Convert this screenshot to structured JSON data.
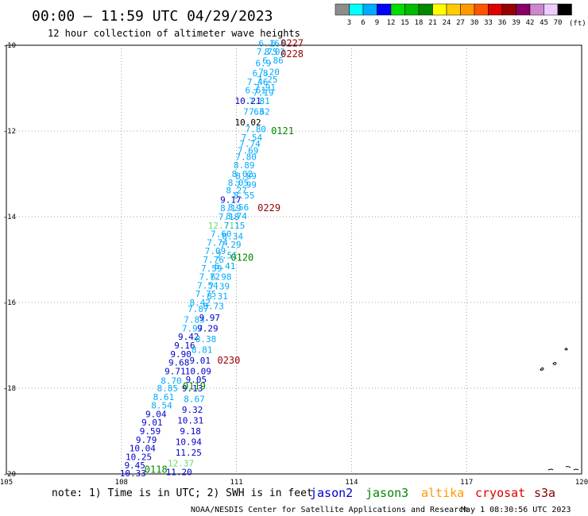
{
  "header": {
    "title": "00:00 – 11:59 UTC 04/29/2023",
    "subtitle": "12 hour collection of altimeter wave heights"
  },
  "legend": {
    "labels": [
      "3",
      "6",
      "9",
      "12",
      "15",
      "18",
      "21",
      "24",
      "27",
      "30",
      "33",
      "36",
      "39",
      "42",
      "45",
      "70"
    ],
    "unit": "(ft)",
    "colors": [
      "#8c8c8c",
      "#00ffff",
      "#00aaff",
      "#0000ff",
      "#00dd00",
      "#00bb00",
      "#008800",
      "#ffff00",
      "#ffcc00",
      "#ff9900",
      "#ff5500",
      "#dd0000",
      "#990000",
      "#880066",
      "#cc88cc",
      "#eeccff",
      "#000000"
    ]
  },
  "axes": {
    "lat_labels": [
      "-10",
      "-12",
      "-14",
      "-16",
      "-18",
      "-20"
    ],
    "lon_labels": [
      "105",
      "108",
      "111",
      "114",
      "117",
      "120"
    ],
    "lat_range": [
      -20,
      -10
    ],
    "lon_range": [
      105,
      120
    ]
  },
  "note": "note: 1) Time is in UTC; 2) SWH is in feet",
  "satellites": [
    {
      "name": "jason2",
      "color": "#0000cc"
    },
    {
      "name": "jason3",
      "color": "#008800"
    },
    {
      "name": "altika",
      "color": "#ff9900"
    },
    {
      "name": "cryosat",
      "color": "#dd0000"
    },
    {
      "name": "s3a",
      "color": "#880000"
    }
  ],
  "footer": {
    "credit": "NOAA/NESDIS Center for Satellite Applications and Research",
    "timestamp": "May  1 08:30:56 UTC 2023"
  },
  "colors": {
    "c_cyan": "#00aaff",
    "c_blue": "#0000cc",
    "c_green": "#008800",
    "c_lgreen": "#66dd66",
    "c_dark": "#000000",
    "c_maroon": "#990000"
  },
  "map_data": {
    "time_labels": [
      {
        "text": "0227",
        "lon": 112.45,
        "lat": -9.95,
        "color": "c_maroon"
      },
      {
        "text": "0228",
        "lon": 112.45,
        "lat": -10.2,
        "color": "c_maroon"
      },
      {
        "text": "0121",
        "lon": 112.2,
        "lat": -12.0,
        "color": "c_green"
      },
      {
        "text": "0229",
        "lon": 111.85,
        "lat": -13.8,
        "color": "c_maroon"
      },
      {
        "text": "0120",
        "lon": 111.15,
        "lat": -14.95,
        "color": "c_green"
      },
      {
        "text": "0230",
        "lon": 110.8,
        "lat": -17.35,
        "color": "c_maroon"
      },
      {
        "text": "0119",
        "lon": 109.9,
        "lat": -17.95,
        "color": "c_green"
      },
      {
        "text": "0118",
        "lon": 108.9,
        "lat": -19.9,
        "color": "c_green"
      }
    ],
    "obs": [
      {
        "text": "6.16",
        "lon": 111.85,
        "lat": -9.95,
        "color": "c_cyan"
      },
      {
        "text": "6.9",
        "lon": 112.1,
        "lat": -9.95,
        "color": "c_cyan"
      },
      {
        "text": "7.75",
        "lon": 111.8,
        "lat": -10.15,
        "color": "c_cyan"
      },
      {
        "text": "8.02",
        "lon": 112.0,
        "lat": -10.15,
        "color": "c_cyan"
      },
      {
        "text": "6.86",
        "lon": 111.95,
        "lat": -10.35,
        "color": "c_cyan"
      },
      {
        "text": "6.9",
        "lon": 111.7,
        "lat": -10.42,
        "color": "c_cyan"
      },
      {
        "text": "7.20",
        "lon": 111.85,
        "lat": -10.62,
        "color": "c_cyan"
      },
      {
        "text": "6.8",
        "lon": 111.62,
        "lat": -10.65,
        "color": "c_cyan"
      },
      {
        "text": "7.25",
        "lon": 111.8,
        "lat": -10.8,
        "color": "c_cyan"
      },
      {
        "text": "7.46",
        "lon": 111.55,
        "lat": -10.85,
        "color": "c_cyan"
      },
      {
        "text": "7.91",
        "lon": 111.75,
        "lat": -10.98,
        "color": "c_cyan"
      },
      {
        "text": "6.61",
        "lon": 111.5,
        "lat": -11.05,
        "color": "c_cyan"
      },
      {
        "text": "7.19",
        "lon": 111.7,
        "lat": -11.1,
        "color": "c_cyan"
      },
      {
        "text": "10.21",
        "lon": 111.3,
        "lat": -11.3,
        "color": "c_blue"
      },
      {
        "text": "7.81",
        "lon": 111.6,
        "lat": -11.3,
        "color": "c_cyan"
      },
      {
        "text": "7.63",
        "lon": 111.45,
        "lat": -11.55,
        "color": "c_cyan"
      },
      {
        "text": "7.62",
        "lon": 111.6,
        "lat": -11.55,
        "color": "c_cyan"
      },
      {
        "text": "10.02",
        "lon": 111.3,
        "lat": -11.8,
        "color": "c_dark"
      },
      {
        "text": "7.80",
        "lon": 111.5,
        "lat": -11.95,
        "color": "c_cyan"
      },
      {
        "text": "7.54",
        "lon": 111.4,
        "lat": -12.15,
        "color": "c_cyan"
      },
      {
        "text": "7.74",
        "lon": 111.35,
        "lat": -12.3,
        "color": "c_cyan"
      },
      {
        "text": "7.69",
        "lon": 111.3,
        "lat": -12.45,
        "color": "c_cyan"
      },
      {
        "text": "7.80",
        "lon": 111.25,
        "lat": -12.6,
        "color": "c_cyan"
      },
      {
        "text": "8.89",
        "lon": 111.2,
        "lat": -12.8,
        "color": "c_cyan"
      },
      {
        "text": "8.02",
        "lon": 111.15,
        "lat": -13.0,
        "color": "c_cyan"
      },
      {
        "text": "8.89",
        "lon": 111.25,
        "lat": -13.05,
        "color": "c_cyan"
      },
      {
        "text": "8.05",
        "lon": 111.05,
        "lat": -13.2,
        "color": "c_cyan"
      },
      {
        "text": "7.99",
        "lon": 111.25,
        "lat": -13.25,
        "color": "c_cyan"
      },
      {
        "text": "8.27",
        "lon": 111.0,
        "lat": -13.38,
        "color": "c_cyan"
      },
      {
        "text": "8.55",
        "lon": 111.2,
        "lat": -13.5,
        "color": "c_cyan"
      },
      {
        "text": "9.17",
        "lon": 110.85,
        "lat": -13.6,
        "color": "c_blue"
      },
      {
        "text": "8.19",
        "lon": 110.85,
        "lat": -13.8,
        "color": "c_cyan"
      },
      {
        "text": "8.56",
        "lon": 111.05,
        "lat": -13.78,
        "color": "c_cyan"
      },
      {
        "text": "7.18",
        "lon": 110.8,
        "lat": -14.0,
        "color": "c_cyan"
      },
      {
        "text": "8.74",
        "lon": 111.0,
        "lat": -13.98,
        "color": "c_cyan"
      },
      {
        "text": "12.71",
        "lon": 110.6,
        "lat": -14.2,
        "color": "c_lgreen"
      },
      {
        "text": "7.15",
        "lon": 110.95,
        "lat": -14.2,
        "color": "c_cyan"
      },
      {
        "text": "7.60",
        "lon": 110.6,
        "lat": -14.4,
        "color": "c_cyan"
      },
      {
        "text": "8.34",
        "lon": 110.9,
        "lat": -14.45,
        "color": "c_cyan"
      },
      {
        "text": "7.74",
        "lon": 110.5,
        "lat": -14.6,
        "color": "c_cyan"
      },
      {
        "text": "7.29",
        "lon": 110.85,
        "lat": -14.65,
        "color": "c_cyan"
      },
      {
        "text": "7.09",
        "lon": 110.45,
        "lat": -14.8,
        "color": "c_cyan"
      },
      {
        "text": "7.51",
        "lon": 110.75,
        "lat": -14.9,
        "color": "c_cyan"
      },
      {
        "text": "7.76",
        "lon": 110.4,
        "lat": -15.0,
        "color": "c_cyan"
      },
      {
        "text": "7.59",
        "lon": 110.35,
        "lat": -15.2,
        "color": "c_cyan"
      },
      {
        "text": "6.41",
        "lon": 110.7,
        "lat": -15.15,
        "color": "c_cyan"
      },
      {
        "text": "7.72",
        "lon": 110.3,
        "lat": -15.4,
        "color": "c_cyan"
      },
      {
        "text": "6.98",
        "lon": 110.6,
        "lat": -15.4,
        "color": "c_cyan"
      },
      {
        "text": "7.54",
        "lon": 110.25,
        "lat": -15.6,
        "color": "c_cyan"
      },
      {
        "text": "7.39",
        "lon": 110.55,
        "lat": -15.62,
        "color": "c_cyan"
      },
      {
        "text": "7.75",
        "lon": 110.2,
        "lat": -15.8,
        "color": "c_cyan"
      },
      {
        "text": "8.31",
        "lon": 110.5,
        "lat": -15.85,
        "color": "c_cyan"
      },
      {
        "text": "8.42",
        "lon": 110.05,
        "lat": -16.0,
        "color": "c_cyan"
      },
      {
        "text": "7.87",
        "lon": 110.0,
        "lat": -16.15,
        "color": "c_cyan"
      },
      {
        "text": "8.73",
        "lon": 110.4,
        "lat": -16.08,
        "color": "c_cyan"
      },
      {
        "text": "7.83",
        "lon": 109.9,
        "lat": -16.4,
        "color": "c_cyan"
      },
      {
        "text": "9.97",
        "lon": 110.3,
        "lat": -16.35,
        "color": "c_blue"
      },
      {
        "text": "7.97",
        "lon": 109.85,
        "lat": -16.6,
        "color": "c_cyan"
      },
      {
        "text": "9.29",
        "lon": 110.25,
        "lat": -16.6,
        "color": "c_blue"
      },
      {
        "text": "9.42",
        "lon": 109.75,
        "lat": -16.8,
        "color": "c_blue"
      },
      {
        "text": "8.38",
        "lon": 110.2,
        "lat": -16.85,
        "color": "c_cyan"
      },
      {
        "text": "9.16",
        "lon": 109.65,
        "lat": -17.0,
        "color": "c_blue"
      },
      {
        "text": "8.81",
        "lon": 110.1,
        "lat": -17.1,
        "color": "c_cyan"
      },
      {
        "text": "9.90",
        "lon": 109.55,
        "lat": -17.2,
        "color": "c_blue"
      },
      {
        "text": "9.01",
        "lon": 110.05,
        "lat": -17.35,
        "color": "c_blue"
      },
      {
        "text": "9.68",
        "lon": 109.5,
        "lat": -17.4,
        "color": "c_blue"
      },
      {
        "text": "10.09",
        "lon": 110.0,
        "lat": -17.6,
        "color": "c_blue"
      },
      {
        "text": "9.71",
        "lon": 109.4,
        "lat": -17.6,
        "color": "c_blue"
      },
      {
        "text": "9.05",
        "lon": 109.95,
        "lat": -17.8,
        "color": "c_blue"
      },
      {
        "text": "8.70",
        "lon": 109.3,
        "lat": -17.82,
        "color": "c_cyan"
      },
      {
        "text": "9.13",
        "lon": 109.85,
        "lat": -18.0,
        "color": "c_blue"
      },
      {
        "text": "8.85",
        "lon": 109.2,
        "lat": -18.0,
        "color": "c_cyan"
      },
      {
        "text": "8.61",
        "lon": 109.1,
        "lat": -18.2,
        "color": "c_cyan"
      },
      {
        "text": "8.67",
        "lon": 109.9,
        "lat": -18.25,
        "color": "c_cyan"
      },
      {
        "text": "8.54",
        "lon": 109.05,
        "lat": -18.4,
        "color": "c_cyan"
      },
      {
        "text": "9.32",
        "lon": 109.85,
        "lat": -18.5,
        "color": "c_blue"
      },
      {
        "text": "9.04",
        "lon": 108.9,
        "lat": -18.6,
        "color": "c_blue"
      },
      {
        "text": "10.31",
        "lon": 109.8,
        "lat": -18.75,
        "color": "c_blue"
      },
      {
        "text": "9.01",
        "lon": 108.8,
        "lat": -18.8,
        "color": "c_blue"
      },
      {
        "text": "9.18",
        "lon": 109.8,
        "lat": -19.0,
        "color": "c_blue"
      },
      {
        "text": "9.59",
        "lon": 108.75,
        "lat": -19.0,
        "color": "c_blue"
      },
      {
        "text": "9.79",
        "lon": 108.65,
        "lat": -19.2,
        "color": "c_blue"
      },
      {
        "text": "10.94",
        "lon": 109.75,
        "lat": -19.25,
        "color": "c_blue"
      },
      {
        "text": "10.04",
        "lon": 108.55,
        "lat": -19.4,
        "color": "c_blue"
      },
      {
        "text": "11.25",
        "lon": 109.75,
        "lat": -19.5,
        "color": "c_blue"
      },
      {
        "text": "10.25",
        "lon": 108.45,
        "lat": -19.6,
        "color": "c_blue"
      },
      {
        "text": "12.37",
        "lon": 109.55,
        "lat": -19.75,
        "color": "c_lgreen"
      },
      {
        "text": "9.45",
        "lon": 108.35,
        "lat": -19.8,
        "color": "c_blue"
      },
      {
        "text": "10.33",
        "lon": 108.3,
        "lat": -19.98,
        "color": "c_blue"
      },
      {
        "text": "11.20",
        "lon": 109.5,
        "lat": -19.95,
        "color": "c_blue"
      }
    ]
  }
}
